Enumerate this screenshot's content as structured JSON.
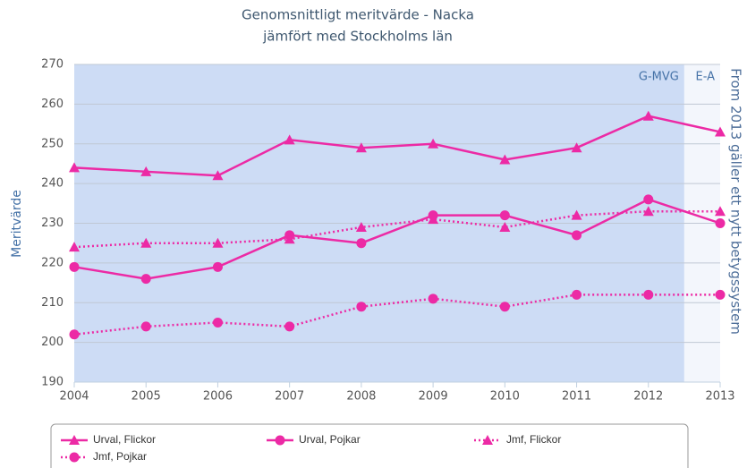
{
  "chart_data": {
    "type": "line",
    "title": "Genomsnittligt meritvärde - Nacka",
    "subtitle": "jämfört med Stockholms län",
    "y_label": "Meritvärde",
    "annotation": "From 2013 gäller ett nytt betygssystem",
    "x": [
      2004,
      2005,
      2006,
      2007,
      2008,
      2009,
      2010,
      2011,
      2012,
      2013
    ],
    "xlim": [
      2004,
      2013
    ],
    "xticks": [
      2004,
      2005,
      2006,
      2007,
      2008,
      2009,
      2010,
      2011,
      2012,
      2013
    ],
    "ylim": [
      190,
      270
    ],
    "yticks": [
      190,
      200,
      210,
      220,
      230,
      240,
      250,
      260,
      270
    ],
    "grid": true,
    "plot_bands": [
      {
        "from": 2004,
        "to": 2012.5,
        "label": "G-MVG",
        "color": "#cddcf5"
      },
      {
        "from": 2012.5,
        "to": 2013,
        "label": "E-A",
        "color": "#f3f6fc"
      }
    ],
    "series": [
      {
        "name": "Urval, Flickor",
        "color": "#ec2aa5",
        "dash": "solid",
        "marker": "triangle",
        "values": [
          244,
          243,
          242,
          251,
          249,
          250,
          246,
          249,
          257,
          253
        ]
      },
      {
        "name": "Urval, Pojkar",
        "color": "#ec2aa5",
        "dash": "solid",
        "marker": "circle",
        "values": [
          219,
          216,
          219,
          227,
          225,
          232,
          232,
          227,
          236,
          230
        ]
      },
      {
        "name": "Jmf, Flickor",
        "color": "#ec2aa5",
        "dash": "dotted",
        "marker": "triangle",
        "values": [
          224,
          225,
          225,
          226,
          229,
          231,
          229,
          232,
          233,
          233
        ]
      },
      {
        "name": "Jmf, Pojkar",
        "color": "#ec2aa5",
        "dash": "dotted",
        "marker": "circle",
        "values": [
          202,
          204,
          205,
          204,
          209,
          211,
          209,
          212,
          212,
          212
        ]
      }
    ]
  }
}
